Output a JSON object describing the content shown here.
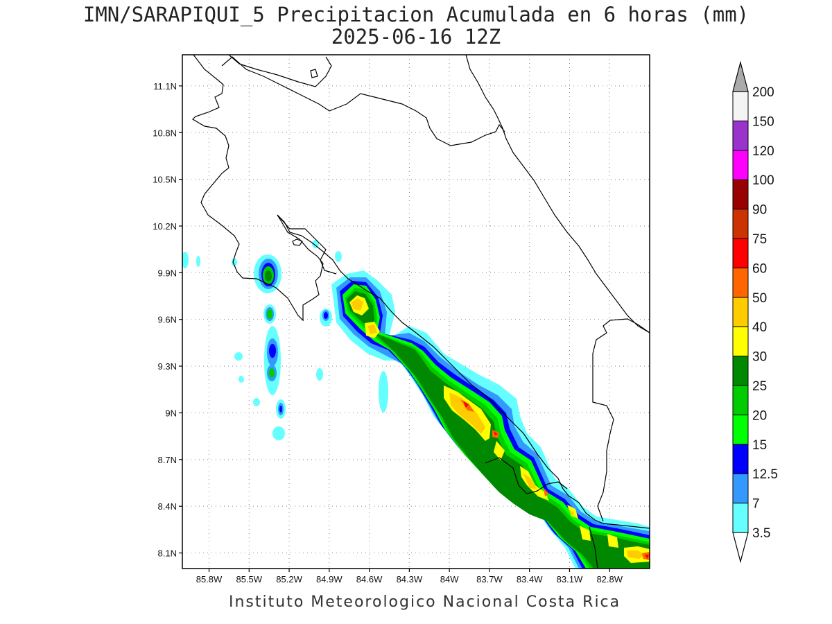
{
  "title_line1": "IMN/SARAPIQUI_5 Precipitacion Acumulada en 6 horas (mm)",
  "title_line2": "2025-06-16 12Z",
  "footer": "Instituto Meteorologico Nacional Costa Rica",
  "map": {
    "lon_range": [
      -86.0,
      -82.5
    ],
    "lat_range": [
      8.0,
      11.3
    ],
    "lat_ticks": [
      {
        "value": 11.1,
        "label": "11.1N"
      },
      {
        "value": 10.8,
        "label": "10.8N"
      },
      {
        "value": 10.5,
        "label": "10.5N"
      },
      {
        "value": 10.2,
        "label": "10.2N"
      },
      {
        "value": 9.9,
        "label": "9.9N"
      },
      {
        "value": 9.6,
        "label": "9.6N"
      },
      {
        "value": 9.3,
        "label": "9.3N"
      },
      {
        "value": 9.0,
        "label": "9N"
      },
      {
        "value": 8.7,
        "label": "8.7N"
      },
      {
        "value": 8.4,
        "label": "8.4N"
      },
      {
        "value": 8.1,
        "label": "8.1N"
      }
    ],
    "lon_ticks": [
      {
        "value": -85.8,
        "label": "85.8W"
      },
      {
        "value": -85.5,
        "label": "85.5W"
      },
      {
        "value": -85.2,
        "label": "85.2W"
      },
      {
        "value": -84.9,
        "label": "84.9W"
      },
      {
        "value": -84.6,
        "label": "84.6W"
      },
      {
        "value": -84.3,
        "label": "84.3W"
      },
      {
        "value": -84.0,
        "label": "84W"
      },
      {
        "value": -83.7,
        "label": "83.7W"
      },
      {
        "value": -83.4,
        "label": "83.4W"
      },
      {
        "value": -83.1,
        "label": "83.1W"
      },
      {
        "value": -82.8,
        "label": "82.8W"
      }
    ],
    "grid": "dotted"
  },
  "colorbar": {
    "levels": [
      {
        "label": "3.5",
        "color": "#66ffff"
      },
      {
        "label": "7",
        "color": "#3399ff"
      },
      {
        "label": "12.5",
        "color": "#0000ff"
      },
      {
        "label": "15",
        "color": "#00ff00"
      },
      {
        "label": "20",
        "color": "#00cc00"
      },
      {
        "label": "25",
        "color": "#008800"
      },
      {
        "label": "30",
        "color": "#ffff00"
      },
      {
        "label": "40",
        "color": "#ffcc00"
      },
      {
        "label": "50",
        "color": "#ff6600"
      },
      {
        "label": "60",
        "color": "#ff0000"
      },
      {
        "label": "75",
        "color": "#cc3300"
      },
      {
        "label": "90",
        "color": "#990000"
      },
      {
        "label": "100",
        "color": "#ff00ff"
      },
      {
        "label": "120",
        "color": "#9933cc"
      },
      {
        "label": "150",
        "color": "#f4f4f4"
      },
      {
        "label": "200",
        "color": "#aaaaaa"
      }
    ]
  }
}
